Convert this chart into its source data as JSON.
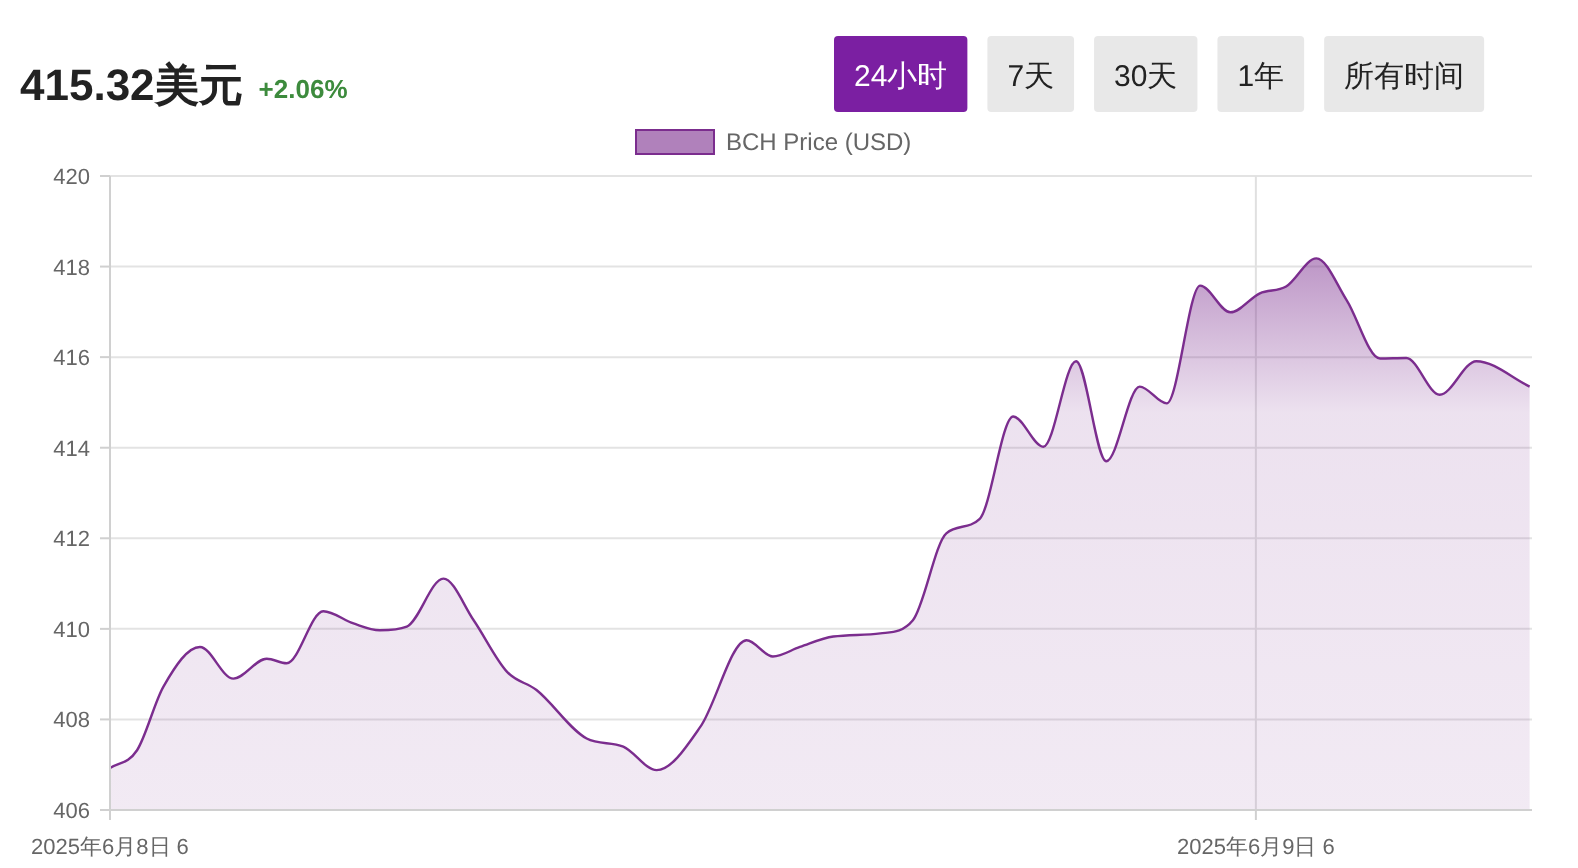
{
  "chart_data": {
    "type": "area",
    "title": "415.32美元",
    "subtitle": "+2.06%",
    "annotations": [
      "24小时",
      "7天",
      "30天",
      "1年",
      "所有时间"
    ],
    "x": [
      "2025-06-08T06:00",
      "2025-06-08T06:34",
      "2025-06-08T07:07",
      "2025-06-08T07:53",
      "2025-06-08T08:35",
      "2025-06-08T09:17",
      "2025-06-08T09:42",
      "2025-06-08T10:28",
      "2025-06-08T11:06",
      "2025-06-08T11:39",
      "2025-06-08T12:13",
      "2025-06-08T12:59",
      "2025-06-08T13:37",
      "2025-06-08T14:19",
      "2025-06-08T14:56",
      "2025-06-08T15:59",
      "2025-06-08T16:45",
      "2025-06-08T17:27",
      "2025-06-08T18:22",
      "2025-06-08T19:20",
      "2025-06-08T19:53",
      "2025-06-08T20:27",
      "2025-06-08T21:09",
      "2025-06-08T22:08",
      "2025-06-08T22:49",
      "2025-06-08T23:31",
      "2025-06-09T00:13",
      "2025-06-09T00:55",
      "2025-06-09T01:33",
      "2025-06-09T02:14",
      "2025-06-09T02:52",
      "2025-06-09T03:34",
      "2025-06-09T04:08",
      "2025-06-09T04:50",
      "2025-06-09T05:28",
      "2025-06-09T06:05",
      "2025-06-09T06:38",
      "2025-06-09T07:16",
      "2025-06-09T07:54",
      "2025-06-09T08:36",
      "2025-06-09T09:09",
      "2025-06-09T09:51",
      "2025-06-09T10:37",
      "2025-06-09T11:44"
    ],
    "series": [
      {
        "name": "BCH Price (USD)",
        "color": "#7b2d8e",
        "values": [
          406.93,
          407.32,
          408.72,
          409.6,
          408.9,
          409.34,
          409.24,
          410.39,
          410.12,
          409.97,
          410.05,
          411.11,
          410.19,
          409.05,
          408.65,
          407.58,
          407.4,
          406.88,
          407.84,
          409.75,
          409.39,
          409.6,
          409.83,
          409.9,
          410.19,
          412.11,
          412.43,
          414.69,
          414.02,
          415.91,
          413.7,
          415.35,
          414.98,
          417.58,
          416.99,
          417.41,
          417.56,
          418.18,
          417.26,
          415.97,
          415.98,
          415.17,
          415.91,
          415.35
        ]
      }
    ],
    "xlim": [
      "2025-06-08T06:00",
      "2025-06-09T11:47"
    ],
    "xticks": [
      {
        "value": "2025-06-08T06:00",
        "label": "2025年6月8日 6"
      },
      {
        "value": "2025-06-09T06:00",
        "label": "2025年6月9日 6"
      }
    ],
    "ylim": [
      406,
      420
    ],
    "yticks": [
      406,
      408,
      410,
      412,
      414,
      416,
      418,
      420
    ],
    "grid": "y",
    "ref_lines": [
      {
        "axis": "x",
        "value": "2025-06-09T06:00",
        "color": "#e0e0e0"
      }
    ],
    "legend": "top",
    "marker": "none",
    "line_style": "solid"
  }
}
